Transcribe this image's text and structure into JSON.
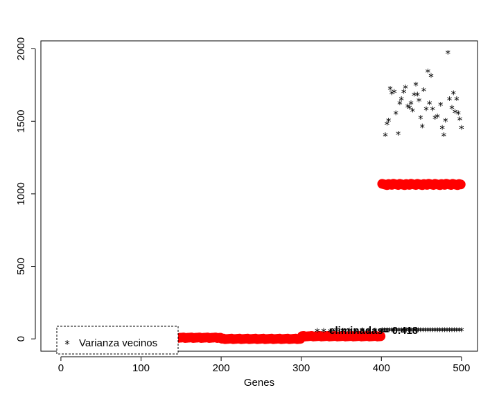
{
  "chart_data": {
    "type": "scatter",
    "title": "",
    "xlabel": "Genes",
    "ylabel": "",
    "xlim": [
      -25,
      520
    ],
    "ylim": [
      -85,
      2055
    ],
    "xticks": [
      0,
      100,
      200,
      300,
      400,
      500
    ],
    "yticks": [
      0,
      500,
      1000,
      1500,
      2000
    ],
    "grid": false,
    "legend": {
      "placement": "bottom-left",
      "entries": [
        {
          "symbol": "*",
          "label": "Varianza vecinos"
        }
      ]
    },
    "annotation": {
      "text": "eliminadas= 0.418",
      "x": 335,
      "y": 58
    },
    "red_series": {
      "color": "#ff0000",
      "segments": [
        {
          "x_from": 1,
          "x_to": 100,
          "y": 12
        },
        {
          "x_from": 101,
          "x_to": 200,
          "y": 8
        },
        {
          "x_from": 201,
          "x_to": 300,
          "y": 0
        },
        {
          "x_from": 301,
          "x_to": 400,
          "y": 18
        },
        {
          "x_from": 401,
          "x_to": 500,
          "y": 1065
        }
      ]
    },
    "star_series": {
      "label": "Varianza vecinos",
      "color": "#000000",
      "low_points": [
        [
          320,
          50
        ],
        [
          328,
          52
        ],
        [
          336,
          48
        ],
        [
          344,
          55
        ],
        [
          352,
          50
        ],
        [
          360,
          53
        ],
        [
          368,
          49
        ],
        [
          376,
          56
        ],
        [
          384,
          51
        ],
        [
          392,
          54
        ],
        [
          400,
          52
        ]
      ],
      "high_points": [
        [
          405,
          1400
        ],
        [
          407,
          1480
        ],
        [
          409,
          1500
        ],
        [
          411,
          1720
        ],
        [
          413,
          1690
        ],
        [
          416,
          1700
        ],
        [
          418,
          1550
        ],
        [
          421,
          1410
        ],
        [
          423,
          1620
        ],
        [
          425,
          1650
        ],
        [
          428,
          1700
        ],
        [
          430,
          1730
        ],
        [
          433,
          1600
        ],
        [
          435,
          1590
        ],
        [
          437,
          1620
        ],
        [
          439,
          1570
        ],
        [
          441,
          1680
        ],
        [
          443,
          1750
        ],
        [
          445,
          1680
        ],
        [
          447,
          1640
        ],
        [
          449,
          1520
        ],
        [
          451,
          1460
        ],
        [
          453,
          1710
        ],
        [
          456,
          1580
        ],
        [
          458,
          1840
        ],
        [
          460,
          1620
        ],
        [
          462,
          1810
        ],
        [
          464,
          1580
        ],
        [
          467,
          1520
        ],
        [
          470,
          1530
        ],
        [
          474,
          1610
        ],
        [
          476,
          1450
        ],
        [
          478,
          1400
        ],
        [
          480,
          1500
        ],
        [
          483,
          1970
        ],
        [
          485,
          1650
        ],
        [
          488,
          1590
        ],
        [
          490,
          1690
        ],
        [
          492,
          1560
        ],
        [
          494,
          1650
        ],
        [
          496,
          1550
        ],
        [
          498,
          1510
        ],
        [
          500,
          1450
        ]
      ],
      "tail_x_from": 401,
      "tail_x_to": 500,
      "tail_y": 55
    }
  }
}
